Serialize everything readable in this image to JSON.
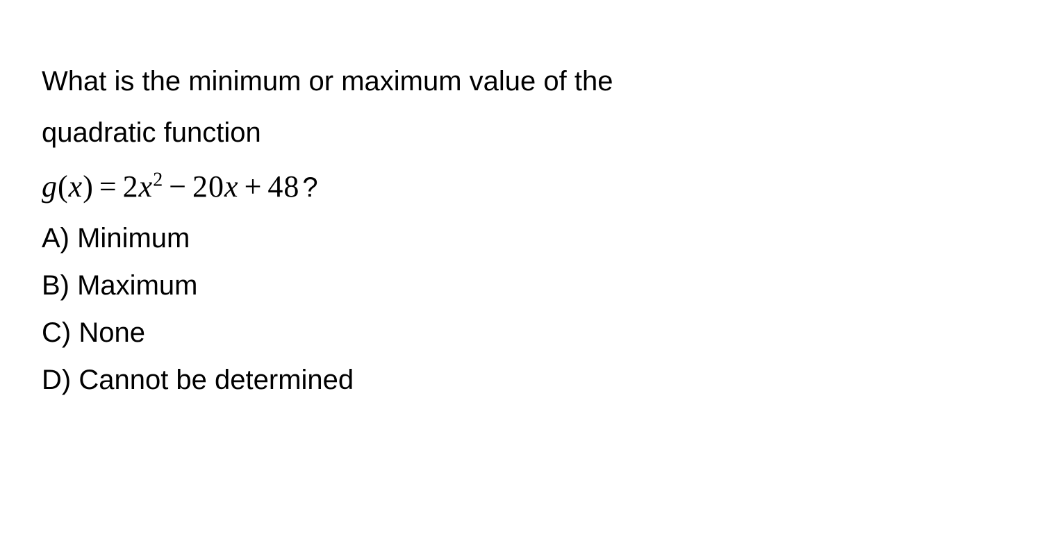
{
  "question": {
    "line1": "What is the minimum or maximum value of the",
    "line2": "quadratic function",
    "equation": {
      "func": "g",
      "var": "x",
      "a": "2",
      "b": "20",
      "c": "48",
      "qmark": "?"
    }
  },
  "options": {
    "a": "A) Minimum",
    "b": "B) Maximum",
    "c": "C) None",
    "d": "D) Cannot be determined"
  },
  "styling": {
    "background_color": "#ffffff",
    "text_color": "#000000",
    "question_fontsize": 40,
    "equation_fontsize": 44,
    "option_fontsize": 40,
    "font_family_text": "Arial, Helvetica, sans-serif",
    "font_family_math": "Times New Roman, Times, serif",
    "line_height": 1.85
  }
}
